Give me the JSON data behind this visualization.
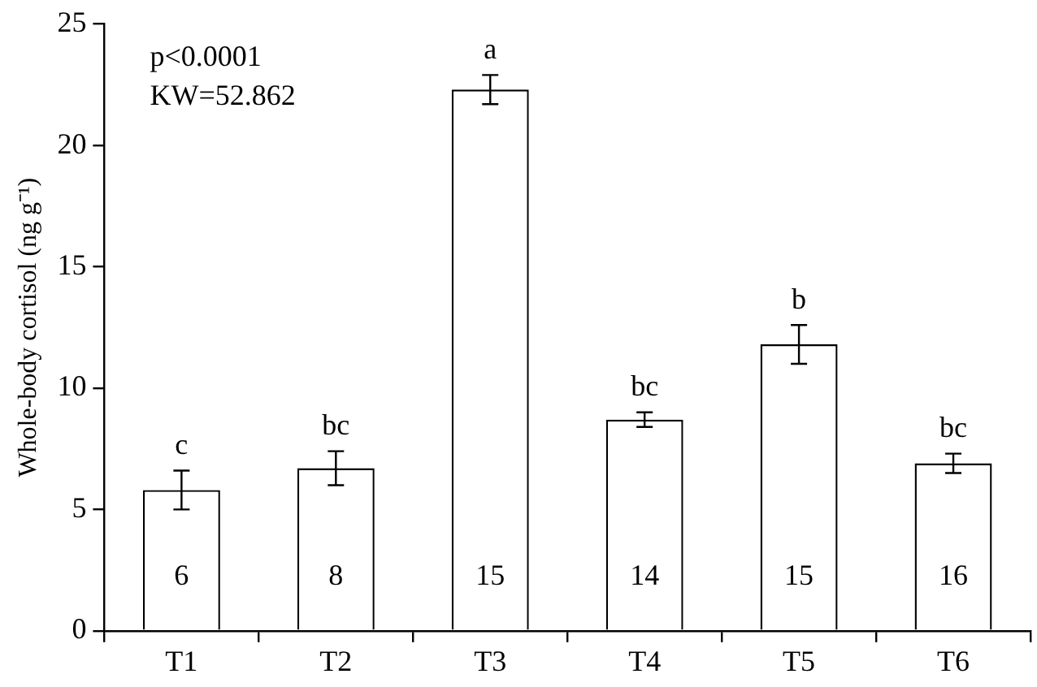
{
  "chart_data": {
    "type": "bar",
    "ylabel": "Whole-body cortisol (ng g⁻¹)",
    "categories": [
      "T1",
      "T2",
      "T3",
      "T4",
      "T5",
      "T6"
    ],
    "values": [
      5.8,
      6.7,
      22.3,
      8.7,
      11.8,
      6.9
    ],
    "errors": [
      0.8,
      0.7,
      0.6,
      0.3,
      0.8,
      0.4
    ],
    "color": "#ffffff",
    "ylim": [
      0,
      25
    ],
    "yticks": [
      0,
      5,
      10,
      15,
      20,
      25
    ],
    "grid": false,
    "annotations": [
      "p<0.0001",
      "KW=52.862",
      {
        "text": "c",
        "x": "T1",
        "y": 6.6
      },
      {
        "text": "bc",
        "x": "T2",
        "y": 7.4
      },
      {
        "text": "a",
        "x": "T3",
        "y": 22.9
      },
      {
        "text": "bc",
        "x": "T4",
        "y": 9.0
      },
      {
        "text": "b",
        "x": "T5",
        "y": 12.6
      },
      {
        "text": "bc",
        "x": "T6",
        "y": 7.3
      },
      {
        "text": "6",
        "x": "T1",
        "y": 0
      },
      {
        "text": "8",
        "x": "T2",
        "y": 0
      },
      {
        "text": "15",
        "x": "T3",
        "y": 0
      },
      {
        "text": "14",
        "x": "T4",
        "y": 0
      },
      {
        "text": "15",
        "x": "T5",
        "y": 0
      },
      {
        "text": "16",
        "x": "T6",
        "y": 0
      }
    ]
  }
}
